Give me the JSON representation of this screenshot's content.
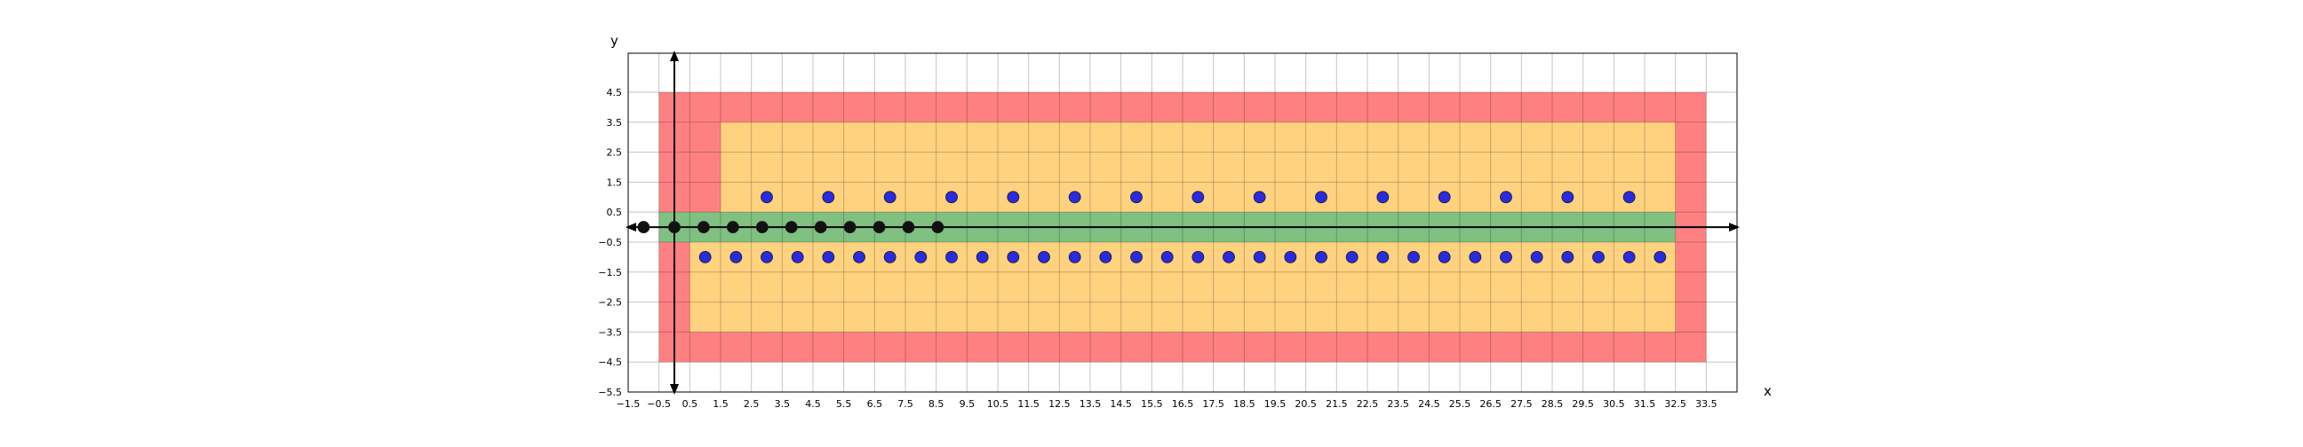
{
  "chart_data": {
    "type": "scatter",
    "title": "",
    "xlabel": "x",
    "ylabel": "y",
    "xlim": [
      -1.5,
      34.5
    ],
    "ylim": [
      -5.5,
      5.8
    ],
    "grid": true,
    "x_ticks": [
      -1.5,
      -0.5,
      0.5,
      1.5,
      2.5,
      3.5,
      4.5,
      5.5,
      6.5,
      7.5,
      8.5,
      9.5,
      10.5,
      11.5,
      12.5,
      13.5,
      14.5,
      15.5,
      16.5,
      17.5,
      18.5,
      19.5,
      20.5,
      21.5,
      22.5,
      23.5,
      24.5,
      25.5,
      26.5,
      27.5,
      28.5,
      29.5,
      30.5,
      31.5,
      32.5,
      33.5
    ],
    "x_tick_labels": [
      "−1.5",
      "−0.5",
      "0.5",
      "1.5",
      "2.5",
      "3.5",
      "4.5",
      "5.5",
      "6.5",
      "7.5",
      "8.5",
      "9.5",
      "10.5",
      "11.5",
      "12.5",
      "13.5",
      "14.5",
      "15.5",
      "16.5",
      "17.5",
      "18.5",
      "19.5",
      "20.5",
      "21.5",
      "22.5",
      "23.5",
      "24.5",
      "25.5",
      "26.5",
      "27.5",
      "28.5",
      "29.5",
      "30.5",
      "31.5",
      "32.5",
      "33.5"
    ],
    "y_ticks": [
      4.5,
      3.5,
      2.5,
      1.5,
      0.5,
      -0.5,
      -1.5,
      -2.5,
      -3.5,
      -4.5,
      -5.5
    ],
    "y_tick_labels": [
      "4.5",
      "3.5",
      "2.5",
      "1.5",
      "0.5",
      "−0.5",
      "−1.5",
      "−2.5",
      "−3.5",
      "−4.5",
      "−5.5"
    ],
    "regions": [
      {
        "color": "#ff8080",
        "polygon": [
          [
            -0.5,
            -4.5
          ],
          [
            33.5,
            -4.5
          ],
          [
            33.5,
            4.5
          ],
          [
            -0.5,
            4.5
          ]
        ]
      },
      {
        "color": "#ffd280",
        "polygon": [
          [
            1.5,
            3.5
          ],
          [
            32.5,
            3.5
          ],
          [
            32.5,
            -3.5
          ],
          [
            0.5,
            -3.5
          ],
          [
            0.5,
            -0.5
          ],
          [
            1.5,
            -0.5
          ]
        ]
      },
      {
        "color": "#80c080",
        "polygon": [
          [
            -0.5,
            -0.5
          ],
          [
            32.5,
            -0.5
          ],
          [
            32.5,
            0.5
          ],
          [
            -0.5,
            0.5
          ]
        ]
      }
    ],
    "series": [
      {
        "color": "#2a2ae0",
        "points": [
          [
            3,
            1
          ],
          [
            5,
            1
          ],
          [
            7,
            1
          ],
          [
            9,
            1
          ],
          [
            11,
            1
          ],
          [
            13,
            1
          ],
          [
            15,
            1
          ],
          [
            17,
            1
          ],
          [
            19,
            1
          ],
          [
            21,
            1
          ],
          [
            23,
            1
          ],
          [
            25,
            1
          ],
          [
            27,
            1
          ],
          [
            29,
            1
          ],
          [
            31,
            1
          ],
          [
            1,
            -1
          ],
          [
            2,
            -1
          ],
          [
            3,
            -1
          ],
          [
            4,
            -1
          ],
          [
            5,
            -1
          ],
          [
            6,
            -1
          ],
          [
            7,
            -1
          ],
          [
            8,
            -1
          ],
          [
            9,
            -1
          ],
          [
            10,
            -1
          ],
          [
            11,
            -1
          ],
          [
            12,
            -1
          ],
          [
            13,
            -1
          ],
          [
            14,
            -1
          ],
          [
            15,
            -1
          ],
          [
            16,
            -1
          ],
          [
            17,
            -1
          ],
          [
            18,
            -1
          ],
          [
            19,
            -1
          ],
          [
            20,
            -1
          ],
          [
            21,
            -1
          ],
          [
            22,
            -1
          ],
          [
            23,
            -1
          ],
          [
            24,
            -1
          ],
          [
            25,
            -1
          ],
          [
            26,
            -1
          ],
          [
            27,
            -1
          ],
          [
            28,
            -1
          ],
          [
            29,
            -1
          ],
          [
            30,
            -1
          ],
          [
            31,
            -1
          ],
          [
            32,
            -1
          ]
        ]
      },
      {
        "color": "#111111",
        "points": [
          [
            -1,
            0
          ],
          [
            0,
            0
          ],
          [
            0.95,
            0
          ],
          [
            1.9,
            0
          ],
          [
            2.85,
            0
          ],
          [
            3.8,
            0
          ],
          [
            4.75,
            0
          ],
          [
            5.7,
            0
          ],
          [
            6.65,
            0
          ],
          [
            7.6,
            0
          ],
          [
            8.55,
            0
          ]
        ]
      }
    ]
  }
}
